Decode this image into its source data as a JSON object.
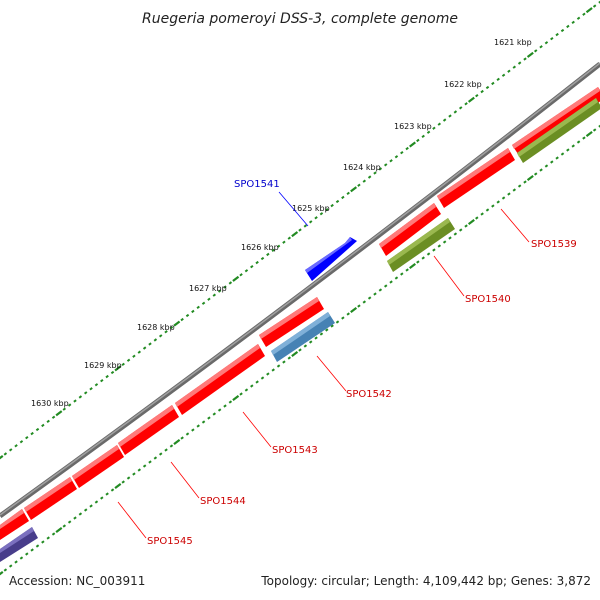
{
  "title": "Ruegeria pomeroyi DSS-3, complete genome",
  "footer": {
    "accession": "Accession: NC_003911",
    "summary": "Topology: circular; Length: 4,109,442 bp; Genes: 3,872"
  },
  "colors": {
    "backbone": "#808080",
    "ticks": "#228B22",
    "forward_cds": "#ff0000",
    "reverse_cds_steel": "#4682b4",
    "reverse_cds_olive": "#6b8e23",
    "reverse_cds_slate": "#483d8b",
    "highlight_gene": "#0000ff",
    "label_red": "#cc0000",
    "label_blue": "#0000cc"
  },
  "ticks": [
    {
      "label": "1621 kbp"
    },
    {
      "label": "1622 kbp"
    },
    {
      "label": "1623 kbp"
    },
    {
      "label": "1624 kbp"
    },
    {
      "label": "1625 kbp"
    },
    {
      "label": "1626 kbp"
    },
    {
      "label": "1627 kbp"
    },
    {
      "label": "1628 kbp"
    },
    {
      "label": "1629 kbp"
    },
    {
      "label": "1630 kbp"
    }
  ],
  "gene_labels": [
    {
      "id": "SPO1539",
      "color": "label_red"
    },
    {
      "id": "SPO1540",
      "color": "label_red"
    },
    {
      "id": "SPO1541",
      "color": "label_blue"
    },
    {
      "id": "SPO1542",
      "color": "label_red"
    },
    {
      "id": "SPO1543",
      "color": "label_red"
    },
    {
      "id": "SPO1544",
      "color": "label_red"
    },
    {
      "id": "SPO1545",
      "color": "label_red"
    }
  ]
}
